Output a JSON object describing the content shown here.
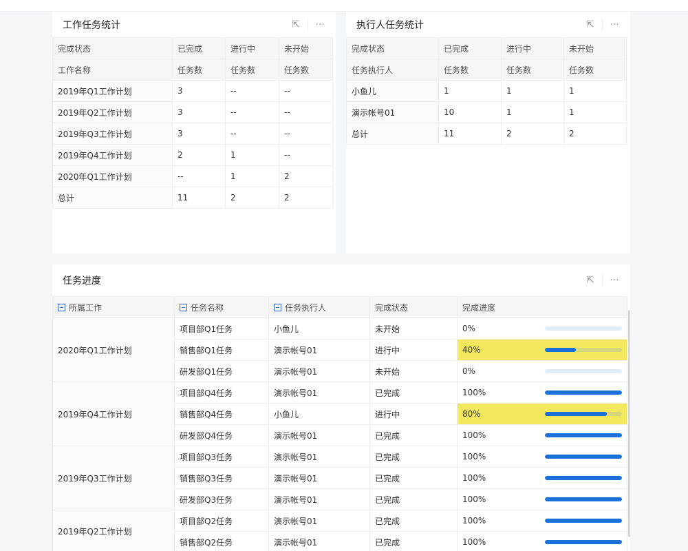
{
  "card1": {
    "title": "工作任务统计",
    "header1": [
      "完成状态",
      "已完成",
      "进行中",
      "未开始"
    ],
    "header2": [
      "工作名称",
      "任务数",
      "任务数",
      "任务数"
    ],
    "rows": [
      [
        "2019年Q1工作计划",
        "3",
        "--",
        "--"
      ],
      [
        "2019年Q2工作计划",
        "3",
        "--",
        "--"
      ],
      [
        "2019年Q3工作计划",
        "3",
        "--",
        "--"
      ],
      [
        "2019年Q4工作计划",
        "2",
        "1",
        "--"
      ],
      [
        "2020年Q1工作计划",
        "--",
        "1",
        "2"
      ],
      [
        "总计",
        "11",
        "2",
        "2"
      ]
    ]
  },
  "card2": {
    "title": "执行人任务统计",
    "header1": [
      "完成状态",
      "已完成",
      "进行中",
      "未开始"
    ],
    "header2": [
      "任务执行人",
      "任务数",
      "任务数",
      "任务数"
    ],
    "rows": [
      [
        "小鱼儿",
        "1",
        "1",
        "1"
      ],
      [
        "演示帐号01",
        "10",
        "1",
        "1"
      ],
      [
        "总计",
        "11",
        "2",
        "2"
      ]
    ]
  },
  "card3": {
    "title": "任务进度",
    "columns": [
      "所属工作",
      "任务名称",
      "任务执行人",
      "完成状态",
      "完成进度"
    ],
    "highlight_color": "#f2e85e",
    "bar_color": "#1a6fd8",
    "groups": [
      {
        "work": "2020年Q1工作计划",
        "rows": [
          {
            "task": "项目部Q1任务",
            "owner": "小鱼儿",
            "status": "未开始",
            "progress": "0%",
            "value": 0,
            "highlight": false
          },
          {
            "task": "销售部Q1任务",
            "owner": "演示帐号01",
            "status": "进行中",
            "progress": "40%",
            "value": 40,
            "highlight": true
          },
          {
            "task": "研发部Q1任务",
            "owner": "演示帐号01",
            "status": "未开始",
            "progress": "0%",
            "value": 0,
            "highlight": false
          }
        ]
      },
      {
        "work": "2019年Q4工作计划",
        "rows": [
          {
            "task": "项目部Q4任务",
            "owner": "演示帐号01",
            "status": "已完成",
            "progress": "100%",
            "value": 100,
            "highlight": false
          },
          {
            "task": "销售部Q4任务",
            "owner": "小鱼儿",
            "status": "进行中",
            "progress": "80%",
            "value": 80,
            "highlight": true
          },
          {
            "task": "研发部Q4任务",
            "owner": "演示帐号01",
            "status": "已完成",
            "progress": "100%",
            "value": 100,
            "highlight": false
          }
        ]
      },
      {
        "work": "2019年Q3工作计划",
        "rows": [
          {
            "task": "项目部Q3任务",
            "owner": "演示帐号01",
            "status": "已完成",
            "progress": "100%",
            "value": 100,
            "highlight": false
          },
          {
            "task": "销售部Q3任务",
            "owner": "演示帐号01",
            "status": "已完成",
            "progress": "100%",
            "value": 100,
            "highlight": false
          },
          {
            "task": "研发部Q3任务",
            "owner": "演示帐号01",
            "status": "已完成",
            "progress": "100%",
            "value": 100,
            "highlight": false
          }
        ]
      },
      {
        "work": "2019年Q2工作计划",
        "rows": [
          {
            "task": "项目部Q2任务",
            "owner": "演示帐号01",
            "status": "已完成",
            "progress": "100%",
            "value": 100,
            "highlight": false
          },
          {
            "task": "销售部Q2任务",
            "owner": "演示帐号01",
            "status": "已完成",
            "progress": "100%",
            "value": 100,
            "highlight": false
          }
        ]
      }
    ]
  },
  "icons": {
    "expand": "external-link-icon",
    "more": "more-icon",
    "collapse": "minus-square-icon"
  }
}
